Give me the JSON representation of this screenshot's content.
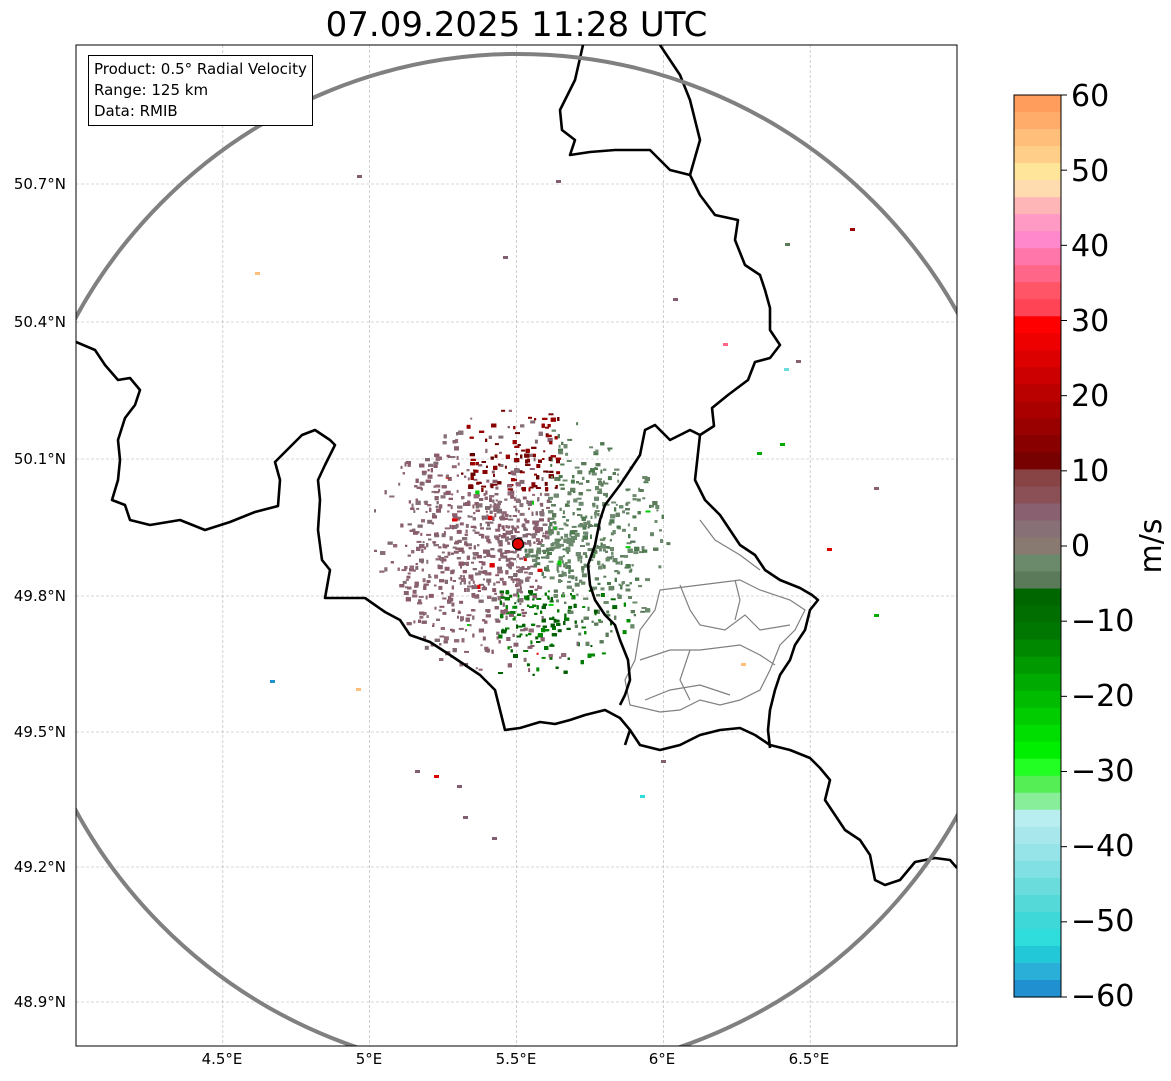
{
  "title": "07.09.2025 11:28 UTC",
  "info_box": {
    "product": "Product: 0.5° Radial Velocity",
    "range": "Range: 125 km",
    "data": "Data: RMIB"
  },
  "map": {
    "lon_range": [
      4.0,
      7.0
    ],
    "lat_range": [
      48.8,
      51.0
    ],
    "radar_site": {
      "lon": 5.505,
      "lat": 49.914
    },
    "range_ring_km": 125,
    "x_ticks": [
      "4.5°E",
      "5°E",
      "5.5°E",
      "6°E",
      "6.5°E"
    ],
    "y_ticks": [
      "50.7°N",
      "50.4°N",
      "50.1°N",
      "49.8°N",
      "49.5°N",
      "49.2°N",
      "48.9°N"
    ],
    "colors": {
      "border": "#000000",
      "admin_lines": "#808080",
      "range_ring": "#808080",
      "grid": "#b0b0b0",
      "radar_marker": "#e00000"
    }
  },
  "colorbar": {
    "label": "m/s",
    "min": -60,
    "max": 60,
    "tick_labels": [
      "60",
      "50",
      "40",
      "30",
      "20",
      "10",
      "0",
      "−10",
      "−20",
      "−30",
      "−40",
      "−50",
      "−60"
    ],
    "segments_top_to_bottom": [
      "#ff9d5c",
      "#ffac6b",
      "#ffbe7a",
      "#ffcf8a",
      "#ffe59a",
      "#ffdbb0",
      "#ffb6b6",
      "#ff9ac4",
      "#ff88cc",
      "#ff77aa",
      "#ff6688",
      "#ff5566",
      "#ff4455",
      "#ff0000",
      "#ee0000",
      "#dd0000",
      "#cc0000",
      "#bb0000",
      "#aa0000",
      "#990000",
      "#880000",
      "#770000",
      "#884444",
      "#8a5055",
      "#886070",
      "#887077",
      "#887a70",
      "#6b8a6b",
      "#5a7a5a",
      "#006600",
      "#006e00",
      "#007700",
      "#008800",
      "#009900",
      "#00aa00",
      "#00bb00",
      "#00cc00",
      "#00dd00",
      "#00ee00",
      "#22ff22",
      "#55ee55",
      "#88ee99",
      "#b8eef0",
      "#a8e8ec",
      "#96e4e8",
      "#80e0e4",
      "#6adcdc",
      "#54d8d8",
      "#3ed8d8",
      "#30dddd",
      "#22c8d8",
      "#2ab0d8",
      "#2090d0"
    ]
  }
}
